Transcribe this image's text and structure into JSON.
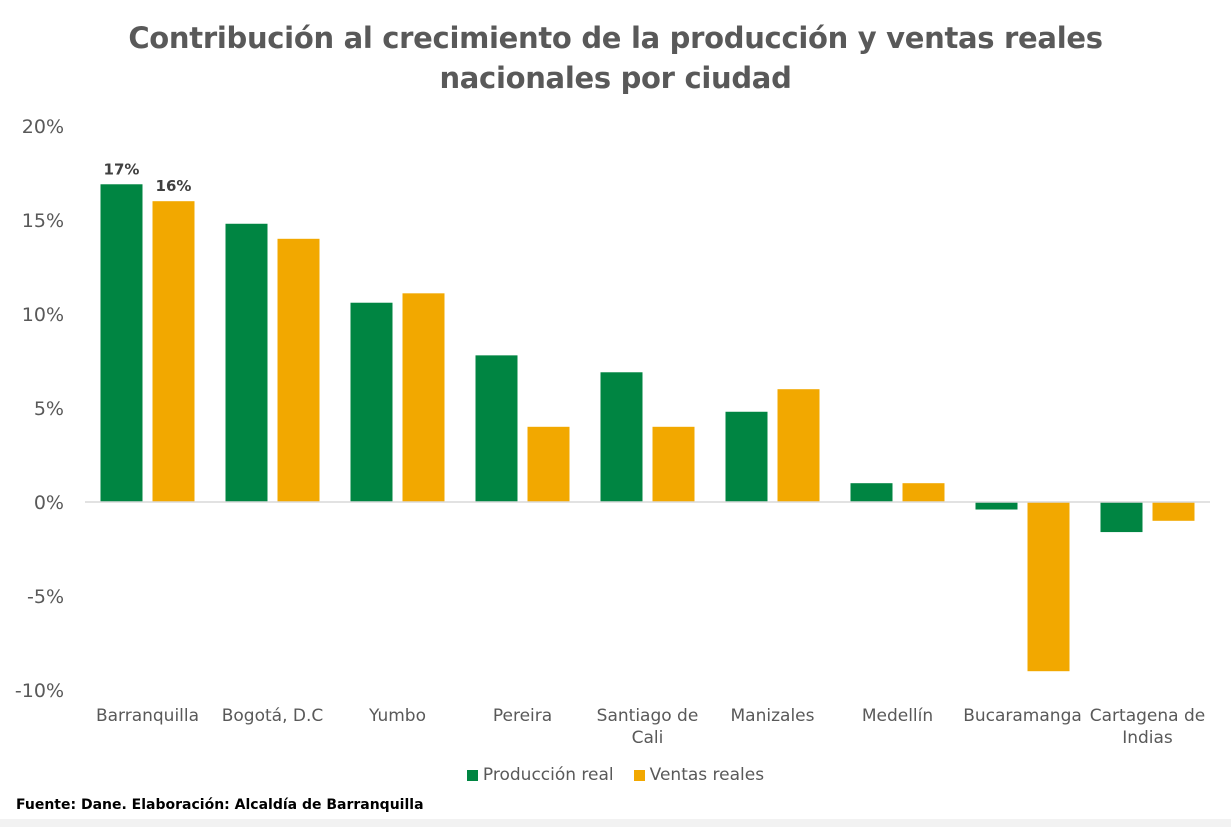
{
  "chart_data": {
    "type": "bar",
    "title": "Contribución al crecimiento de la producción y ventas reales nacionales por ciudad",
    "title_lines": [
      "Contribución al crecimiento de la producción y ventas reales",
      "nacionales por ciudad"
    ],
    "categories": [
      "Barranquilla",
      "Bogotá, D.C",
      "Yumbo",
      "Pereira",
      "Santiago de Cali",
      "Manizales",
      "Medellín",
      "Bucaramanga",
      "Cartagena de Indias"
    ],
    "category_lines": [
      [
        "Barranquilla"
      ],
      [
        "Bogotá, D.C"
      ],
      [
        "Yumbo"
      ],
      [
        "Pereira"
      ],
      [
        "Santiago de",
        "Cali"
      ],
      [
        "Manizales"
      ],
      [
        "Medellín"
      ],
      [
        "Bucaramanga"
      ],
      [
        "Cartagena de",
        "Indias"
      ]
    ],
    "series": [
      {
        "name": "Producción real",
        "color": "#008542",
        "values": [
          16.9,
          14.8,
          10.6,
          7.8,
          6.9,
          4.8,
          1.0,
          -0.4,
          -1.6
        ]
      },
      {
        "name": "Ventas reales",
        "color": "#F2A800",
        "values": [
          16.0,
          14.0,
          11.1,
          4.0,
          4.0,
          6.0,
          1.0,
          -9.0,
          -1.0
        ]
      }
    ],
    "data_labels": [
      {
        "series": 0,
        "index": 0,
        "text": "17%"
      },
      {
        "series": 1,
        "index": 0,
        "text": "16%"
      }
    ],
    "ylim": [
      -10,
      20
    ],
    "yticks": [
      20,
      15,
      10,
      5,
      0,
      -5,
      -10
    ],
    "ytick_labels": [
      "20%",
      "15%",
      "10%",
      "5%",
      "0%",
      "-5%",
      "-10%"
    ],
    "xlabel": "",
    "ylabel": "",
    "grid": false,
    "legend_position": "bottom"
  },
  "legend": {
    "production_label": "Producción real",
    "sales_label": "Ventas reales"
  },
  "source": "Fuente: Dane. Elaboración: Alcaldía de Barranquilla"
}
